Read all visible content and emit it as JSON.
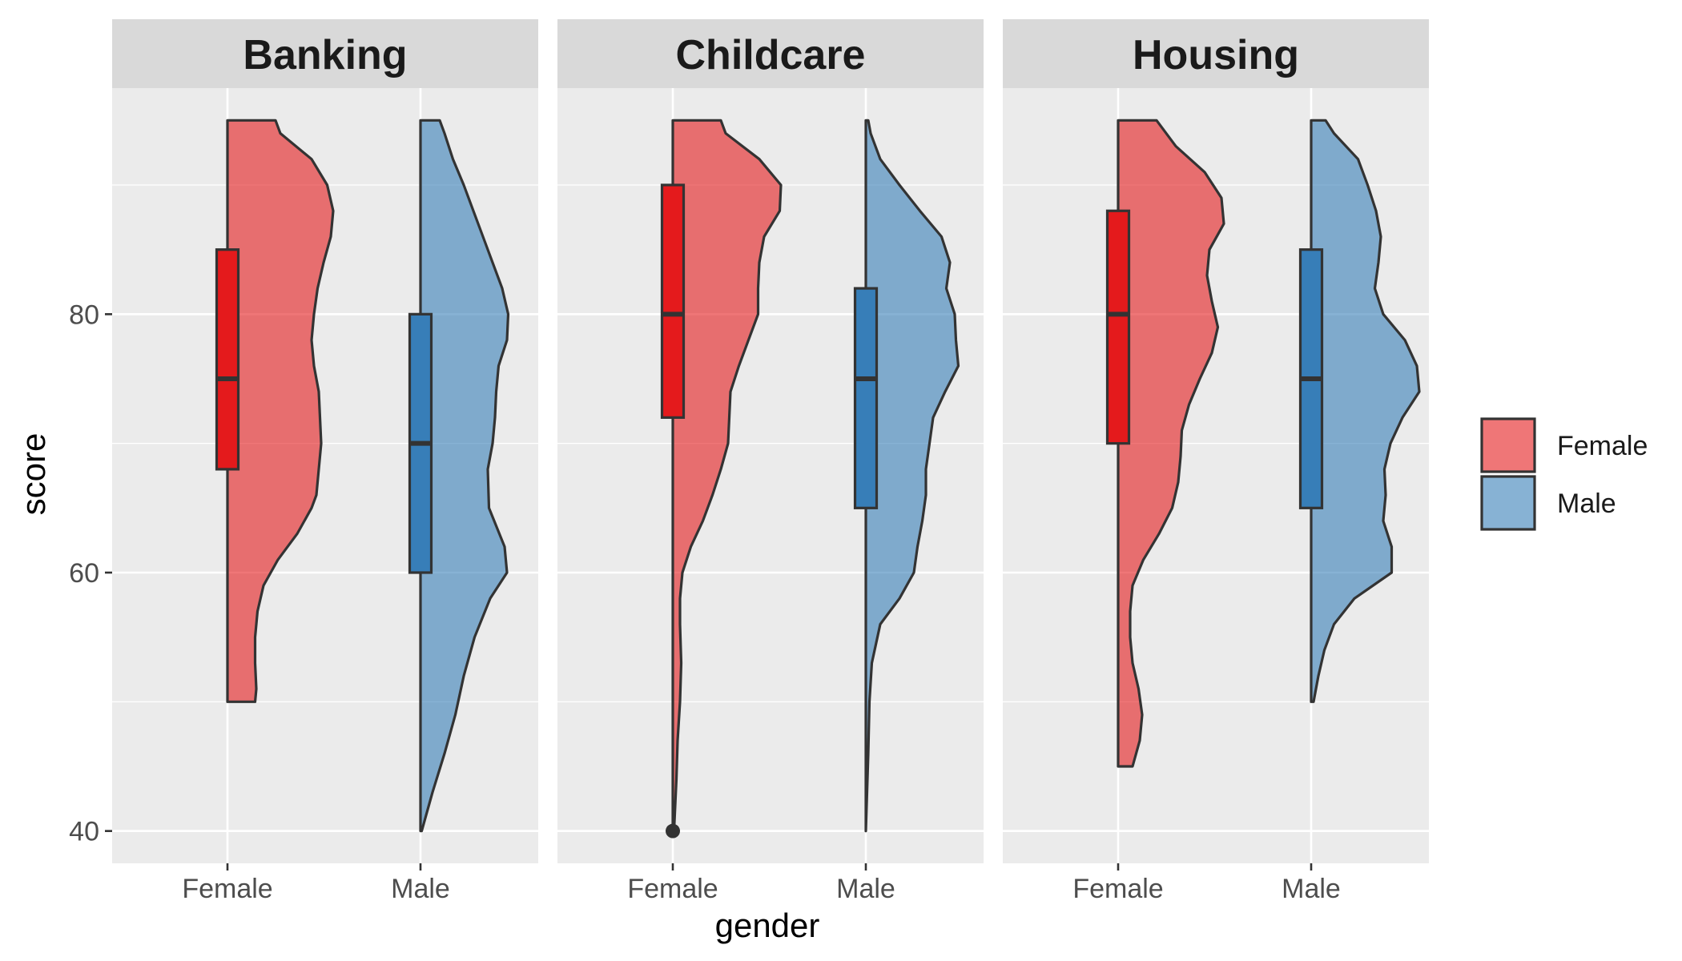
{
  "chart_data": {
    "type": "violin",
    "xlabel": "gender",
    "ylabel": "score",
    "ylim": [
      37.5,
      97.5
    ],
    "y_ticks": [
      "40",
      "60",
      "80"
    ],
    "y_tick_values": [
      40,
      60,
      80
    ],
    "grid": true,
    "legend_position": "right",
    "legend": [
      {
        "label": "Female",
        "color": "#E41A1C"
      },
      {
        "label": "Male",
        "color": "#377EB8"
      }
    ],
    "categories": [
      "Female",
      "Male"
    ],
    "panels": [
      {
        "title": "Banking",
        "groups": [
          {
            "category": "Female",
            "box": {
              "q1": 68,
              "median": 75,
              "q3": 85
            },
            "outliers": [],
            "density": [
              [
                50,
                0.23
              ],
              [
                51,
                0.24
              ],
              [
                53,
                0.23
              ],
              [
                55,
                0.23
              ],
              [
                57,
                0.25
              ],
              [
                59,
                0.3
              ],
              [
                61,
                0.42
              ],
              [
                63,
                0.58
              ],
              [
                65,
                0.7
              ],
              [
                66,
                0.74
              ],
              [
                68,
                0.76
              ],
              [
                70,
                0.78
              ],
              [
                72,
                0.77
              ],
              [
                74,
                0.76
              ],
              [
                76,
                0.72
              ],
              [
                78,
                0.7
              ],
              [
                80,
                0.72
              ],
              [
                82,
                0.75
              ],
              [
                84,
                0.8
              ],
              [
                86,
                0.86
              ],
              [
                88,
                0.88
              ],
              [
                90,
                0.83
              ],
              [
                92,
                0.7
              ],
              [
                94,
                0.44
              ],
              [
                95,
                0.4
              ]
            ]
          },
          {
            "category": "Male",
            "box": {
              "q1": 60,
              "median": 70,
              "q3": 80
            },
            "outliers": [],
            "density": [
              [
                40,
                0.01
              ],
              [
                43,
                0.1
              ],
              [
                46,
                0.2
              ],
              [
                49,
                0.29
              ],
              [
                52,
                0.36
              ],
              [
                55,
                0.45
              ],
              [
                58,
                0.58
              ],
              [
                60,
                0.72
              ],
              [
                62,
                0.7
              ],
              [
                65,
                0.57
              ],
              [
                68,
                0.56
              ],
              [
                70,
                0.6
              ],
              [
                72,
                0.62
              ],
              [
                74,
                0.63
              ],
              [
                76,
                0.65
              ],
              [
                78,
                0.72
              ],
              [
                80,
                0.73
              ],
              [
                82,
                0.68
              ],
              [
                84,
                0.6
              ],
              [
                86,
                0.52
              ],
              [
                88,
                0.44
              ],
              [
                90,
                0.36
              ],
              [
                92,
                0.27
              ],
              [
                94,
                0.2
              ],
              [
                95,
                0.16
              ]
            ]
          }
        ]
      },
      {
        "title": "Childcare",
        "groups": [
          {
            "category": "Female",
            "box": {
              "q1": 72,
              "median": 80,
              "q3": 90
            },
            "outliers": [
              40
            ],
            "density": [
              [
                40,
                0.01
              ],
              [
                42,
                0.02
              ],
              [
                44,
                0.03
              ],
              [
                47,
                0.04
              ],
              [
                50,
                0.06
              ],
              [
                53,
                0.07
              ],
              [
                56,
                0.06
              ],
              [
                58,
                0.06
              ],
              [
                60,
                0.08
              ],
              [
                62,
                0.15
              ],
              [
                64,
                0.25
              ],
              [
                66,
                0.33
              ],
              [
                68,
                0.4
              ],
              [
                70,
                0.46
              ],
              [
                72,
                0.47
              ],
              [
                74,
                0.48
              ],
              [
                76,
                0.55
              ],
              [
                78,
                0.63
              ],
              [
                80,
                0.71
              ],
              [
                82,
                0.71
              ],
              [
                84,
                0.72
              ],
              [
                86,
                0.76
              ],
              [
                88,
                0.89
              ],
              [
                90,
                0.9
              ],
              [
                92,
                0.72
              ],
              [
                94,
                0.44
              ],
              [
                95,
                0.4
              ]
            ]
          },
          {
            "category": "Male",
            "box": {
              "q1": 65,
              "median": 75,
              "q3": 82
            },
            "outliers": [],
            "density": [
              [
                40,
                0.0
              ],
              [
                43,
                0.01
              ],
              [
                46,
                0.02
              ],
              [
                50,
                0.03
              ],
              [
                53,
                0.05
              ],
              [
                56,
                0.12
              ],
              [
                58,
                0.28
              ],
              [
                60,
                0.4
              ],
              [
                62,
                0.43
              ],
              [
                64,
                0.47
              ],
              [
                66,
                0.5
              ],
              [
                68,
                0.5
              ],
              [
                70,
                0.53
              ],
              [
                72,
                0.56
              ],
              [
                74,
                0.66
              ],
              [
                76,
                0.77
              ],
              [
                78,
                0.75
              ],
              [
                80,
                0.74
              ],
              [
                82,
                0.67
              ],
              [
                84,
                0.7
              ],
              [
                86,
                0.63
              ],
              [
                88,
                0.45
              ],
              [
                90,
                0.28
              ],
              [
                92,
                0.12
              ],
              [
                94,
                0.04
              ],
              [
                95,
                0.02
              ]
            ]
          }
        ]
      },
      {
        "title": "Housing",
        "groups": [
          {
            "category": "Female",
            "box": {
              "q1": 70,
              "median": 80,
              "q3": 88
            },
            "outliers": [],
            "density": [
              [
                45,
                0.12
              ],
              [
                47,
                0.18
              ],
              [
                49,
                0.2
              ],
              [
                51,
                0.17
              ],
              [
                53,
                0.12
              ],
              [
                55,
                0.1
              ],
              [
                57,
                0.1
              ],
              [
                59,
                0.12
              ],
              [
                61,
                0.21
              ],
              [
                63,
                0.34
              ],
              [
                65,
                0.45
              ],
              [
                67,
                0.5
              ],
              [
                69,
                0.52
              ],
              [
                71,
                0.53
              ],
              [
                73,
                0.59
              ],
              [
                75,
                0.68
              ],
              [
                77,
                0.78
              ],
              [
                79,
                0.83
              ],
              [
                81,
                0.78
              ],
              [
                83,
                0.74
              ],
              [
                85,
                0.76
              ],
              [
                87,
                0.88
              ],
              [
                89,
                0.86
              ],
              [
                91,
                0.72
              ],
              [
                93,
                0.48
              ],
              [
                95,
                0.32
              ]
            ]
          },
          {
            "category": "Male",
            "box": {
              "q1": 65,
              "median": 75,
              "q3": 85
            },
            "outliers": [],
            "density": [
              [
                50,
                0.02
              ],
              [
                52,
                0.06
              ],
              [
                54,
                0.11
              ],
              [
                56,
                0.19
              ],
              [
                58,
                0.36
              ],
              [
                60,
                0.67
              ],
              [
                62,
                0.67
              ],
              [
                64,
                0.6
              ],
              [
                66,
                0.62
              ],
              [
                68,
                0.61
              ],
              [
                70,
                0.66
              ],
              [
                72,
                0.76
              ],
              [
                74,
                0.9
              ],
              [
                76,
                0.88
              ],
              [
                78,
                0.78
              ],
              [
                80,
                0.6
              ],
              [
                82,
                0.53
              ],
              [
                84,
                0.56
              ],
              [
                86,
                0.58
              ],
              [
                88,
                0.54
              ],
              [
                90,
                0.47
              ],
              [
                92,
                0.39
              ],
              [
                94,
                0.19
              ],
              [
                95,
                0.12
              ]
            ]
          }
        ]
      }
    ]
  }
}
